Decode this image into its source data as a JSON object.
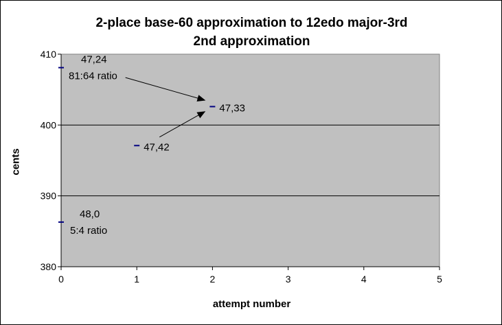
{
  "chart_data": {
    "type": "scatter",
    "title": "2-place base-60 approximation to 12edo major-3rd",
    "subtitle": "2nd approximation",
    "xlabel": "attempt number",
    "ylabel": "cents",
    "xlim": [
      0,
      5
    ],
    "ylim": [
      380,
      410
    ],
    "x_ticks": [
      0,
      1,
      2,
      3,
      4,
      5
    ],
    "y_ticks": [
      380,
      390,
      400,
      410
    ],
    "grid": "horizontal",
    "background": "#c0c0c0",
    "marker_color": "#000080",
    "points": [
      {
        "x": 0,
        "y": 408.1,
        "label": "47,24",
        "sublabel": "81:64 ratio"
      },
      {
        "x": 2,
        "y": 402.6,
        "label": "47,33",
        "sublabel": ""
      },
      {
        "x": 1,
        "y": 397.1,
        "label": "47,42",
        "sublabel": ""
      },
      {
        "x": 0,
        "y": 386.3,
        "label": "48,0",
        "sublabel": "5:4 ratio"
      }
    ],
    "arrows": [
      {
        "from": [
          0.85,
          406.7
        ],
        "to": [
          1.9,
          403.5
        ]
      },
      {
        "from": [
          1.3,
          398.3
        ],
        "to": [
          1.9,
          401.9
        ]
      }
    ]
  }
}
